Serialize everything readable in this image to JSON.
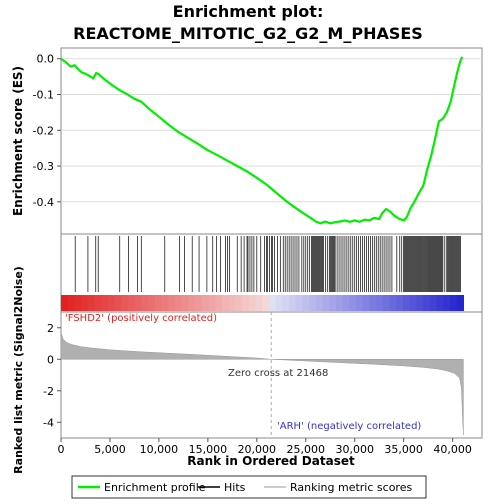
{
  "chart_data": {
    "type": "line",
    "title_line1": "Enrichment plot:",
    "title_line2": "REACTOME_MITOTIC_G2_G2_M_PHASES",
    "top_panel": {
      "ylabel": "Enrichment score (ES)",
      "ylim": [
        -0.49,
        0.03
      ],
      "yticks": [
        0.0,
        -0.1,
        -0.2,
        -0.3,
        -0.4
      ],
      "ytick_labels": [
        "0.0",
        "-0.1",
        "-0.2",
        "-0.3",
        "-0.4"
      ],
      "series": [
        {
          "name": "Enrichment profile",
          "color": "#00ee00",
          "x": [
            0,
            500,
            1000,
            1400,
            1700,
            2100,
            2500,
            2900,
            3300,
            3600,
            3800,
            4200,
            4700,
            5300,
            6000,
            6800,
            7500,
            8200,
            9000,
            10000,
            11000,
            12000,
            13000,
            14000,
            15000,
            16000,
            17000,
            18000,
            19000,
            20000,
            21000,
            22000,
            23000,
            24000,
            24800,
            25500,
            26000,
            26500,
            27000,
            27500,
            28000,
            28500,
            29000,
            29500,
            30000,
            30500,
            31000,
            31500,
            32000,
            32500,
            32800,
            33200,
            33600,
            34000,
            34500,
            35000,
            35300,
            35700,
            36100,
            36500,
            37000,
            37400,
            37800,
            38200,
            38600,
            39000,
            39400,
            39800,
            40200,
            40500,
            40800,
            41000
          ],
          "y": [
            0.0,
            -0.01,
            -0.022,
            -0.018,
            -0.028,
            -0.038,
            -0.042,
            -0.048,
            -0.055,
            -0.04,
            -0.042,
            -0.052,
            -0.063,
            -0.075,
            -0.088,
            -0.1,
            -0.112,
            -0.12,
            -0.14,
            -0.162,
            -0.185,
            -0.205,
            -0.222,
            -0.238,
            -0.256,
            -0.27,
            -0.285,
            -0.3,
            -0.315,
            -0.333,
            -0.352,
            -0.375,
            -0.398,
            -0.418,
            -0.433,
            -0.445,
            -0.455,
            -0.46,
            -0.455,
            -0.46,
            -0.457,
            -0.455,
            -0.452,
            -0.456,
            -0.452,
            -0.456,
            -0.45,
            -0.452,
            -0.445,
            -0.448,
            -0.432,
            -0.42,
            -0.427,
            -0.438,
            -0.447,
            -0.452,
            -0.444,
            -0.418,
            -0.4,
            -0.378,
            -0.355,
            -0.31,
            -0.272,
            -0.225,
            -0.175,
            -0.168,
            -0.15,
            -0.12,
            -0.07,
            -0.035,
            -0.005,
            0.005
          ]
        }
      ]
    },
    "hits_panel": {
      "positions": [
        1450,
        2750,
        3550,
        3800,
        6000,
        6900,
        7800,
        8200,
        10600,
        12100,
        12600,
        13400,
        14100,
        14900,
        15500,
        15900,
        16300,
        16800,
        17000,
        17200,
        18000,
        18400,
        18700,
        19000,
        19100,
        19300,
        19500,
        19700,
        20000,
        20400,
        20800,
        21000,
        21100,
        21300,
        21500,
        21600,
        21800,
        22100,
        22400,
        22700,
        22900,
        23100,
        23300,
        23500,
        23700,
        23900,
        24100,
        24300,
        24600,
        24800,
        25000,
        25200,
        25400,
        25600,
        25700,
        25800,
        25900,
        26000,
        26100,
        26200,
        26300,
        26400,
        26500,
        26600,
        26700,
        26800,
        27000,
        27200,
        27400,
        27500,
        27600,
        27700,
        27800,
        27900,
        28000,
        28200,
        28400,
        28600,
        28800,
        29000,
        29200,
        29400,
        29600,
        29800,
        30000,
        30200,
        30400,
        30600,
        30800,
        31000,
        31200,
        31400,
        31600,
        31800,
        32000,
        32200,
        32400,
        32600,
        32800,
        33000,
        33200,
        33400,
        33600,
        33800,
        34300,
        34600,
        34800,
        35000,
        35100,
        35200,
        35300,
        35400,
        35500,
        35600,
        35700,
        35800,
        35900,
        36000,
        36100,
        36200,
        36300,
        36400,
        36500,
        36600,
        36700,
        36800,
        36900,
        37000,
        37100,
        37200,
        37300,
        37400,
        37500,
        37600,
        37700,
        37800,
        37900,
        38000,
        38100,
        38200,
        38300,
        38400,
        38500,
        38600,
        38700,
        38800,
        38900,
        39000,
        39200,
        39400,
        39500,
        39600,
        39700,
        39800,
        39900,
        40000,
        40100,
        40200,
        40300,
        40400,
        40500,
        40600,
        40700,
        40800
      ]
    },
    "ranked_panel": {
      "ylabel_line1": "Ranked list metric (Signal2Noise)",
      "ylim": [
        -5,
        3
      ],
      "yticks": [
        2,
        0,
        -2,
        -4
      ],
      "ytick_labels": [
        "2",
        "0",
        "-2",
        "-4"
      ],
      "x": [
        0,
        200,
        500,
        1000,
        2000,
        3000,
        5000,
        8000,
        12000,
        16000,
        20000,
        21468,
        24000,
        28000,
        32000,
        35000,
        37000,
        38500,
        39500,
        40200,
        40700,
        40900,
        41000,
        41100
      ],
      "y": [
        1.7,
        1.3,
        1.1,
        0.95,
        0.8,
        0.72,
        0.6,
        0.48,
        0.35,
        0.22,
        0.08,
        0.0,
        -0.08,
        -0.2,
        -0.32,
        -0.42,
        -0.52,
        -0.62,
        -0.75,
        -0.9,
        -1.2,
        -1.8,
        -3.5,
        -4.8
      ],
      "positive_label": "'FSHD2' (positively correlated)",
      "negative_label": "'ARH' (negatively correlated)",
      "zero_cross_label": "Zero cross at 21468",
      "zero_cross": 21468
    },
    "xaxis": {
      "xlabel": "Rank in Ordered Dataset",
      "xlim": [
        0,
        43000
      ],
      "xticks": [
        0,
        5000,
        10000,
        15000,
        20000,
        25000,
        30000,
        35000,
        40000
      ],
      "xtick_labels": [
        "0",
        "5,000",
        "10,000",
        "15,000",
        "20,000",
        "25,000",
        "30,000",
        "35,000",
        "40,000"
      ]
    },
    "legend": {
      "items": [
        {
          "label": "Enrichment profile",
          "color": "#00ee00"
        },
        {
          "label": "Hits",
          "color": "#000000"
        },
        {
          "label": "Ranking metric scores",
          "color": "#bbbbbb"
        }
      ]
    },
    "colors": {
      "positive_text": "#dd2222",
      "negative_text": "#3333cc",
      "ranked_fill": "#b0b0b0"
    }
  }
}
